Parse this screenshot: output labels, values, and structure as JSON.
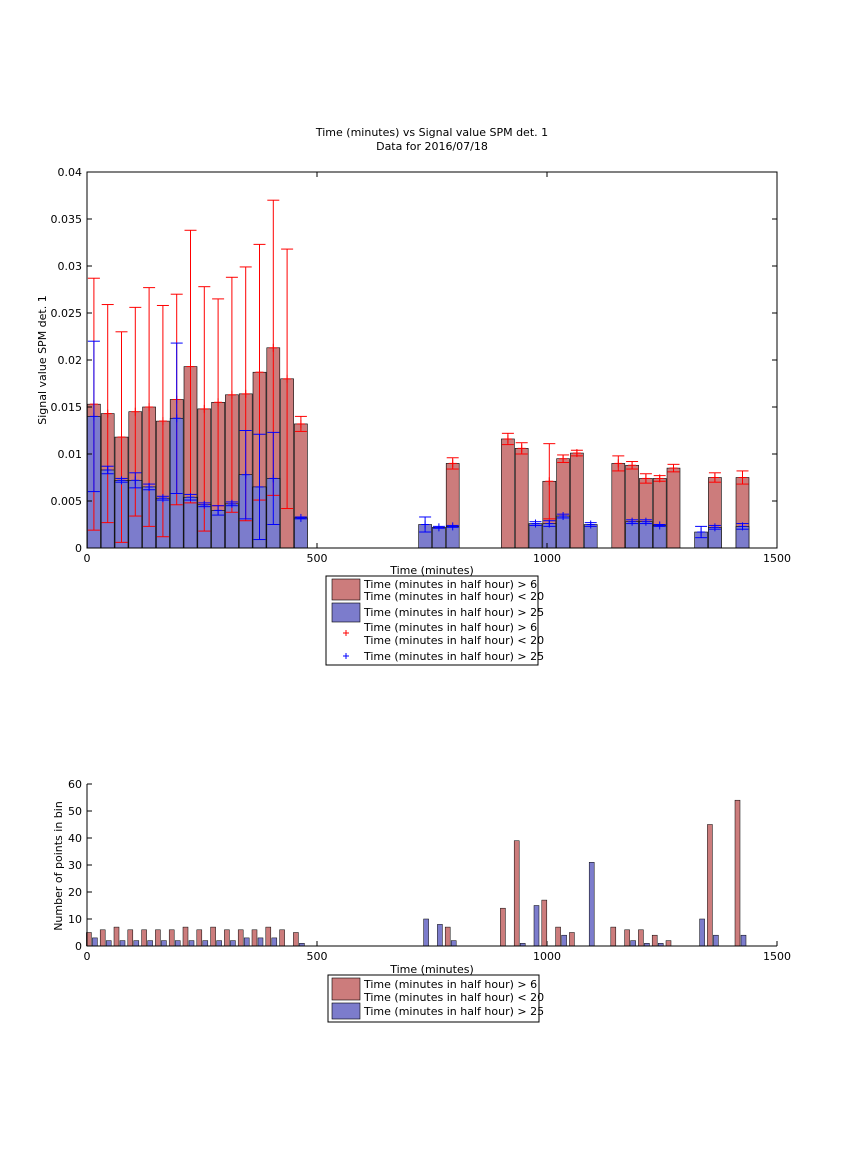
{
  "chart_data": [
    {
      "type": "bar",
      "title": "Time (minutes) vs Signal value SPM det. 1",
      "subtitle": "Data for 2016/07/18",
      "xlabel": "Time (minutes)",
      "ylabel": "Signal value SPM det. 1",
      "xlim": [
        0,
        1500
      ],
      "ylim": [
        0,
        0.04
      ],
      "xticks": [
        0,
        500,
        1000,
        1500
      ],
      "yticks": [
        0,
        0.005,
        0.01,
        0.015,
        0.02,
        0.025,
        0.03,
        0.035,
        0.04
      ],
      "xtick_labels": [
        "0",
        "500",
        "1000",
        "1500"
      ],
      "ytick_labels": [
        "0",
        "0.005",
        "0.01",
        "0.015",
        "0.02",
        "0.025",
        "0.03",
        "0.035",
        "0.04"
      ],
      "grid": false,
      "legend_position": "below plot",
      "legend": [
        {
          "label": "Time (minutes in half hour) > 6\nTime (minutes in half hour) < 20",
          "kind": "bar",
          "color": "#cc7c7c"
        },
        {
          "label": "Time (minutes in half hour) > 25",
          "kind": "bar",
          "color": "#7c7ccc"
        },
        {
          "label": "Time (minutes in half hour) > 6\nTime (minutes in half hour) < 20",
          "kind": "marker",
          "color": "#ff0000"
        },
        {
          "label": "Time (minutes in half hour) > 25",
          "kind": "marker",
          "color": "#0000ff"
        }
      ],
      "series": [
        {
          "name": "Time (minutes in half hour) > 6\nTime (minutes in half hour) < 20",
          "color": "#cc7c7c",
          "err_color": "#ff0000",
          "x": [
            15,
            45,
            75,
            105,
            135,
            165,
            195,
            225,
            255,
            285,
            315,
            345,
            375,
            405,
            435,
            465,
            795,
            915,
            945,
            1005,
            1035,
            1065,
            1155,
            1185,
            1215,
            1245,
            1275,
            1365,
            1425
          ],
          "y": [
            0.0153,
            0.0143,
            0.0118,
            0.0145,
            0.015,
            0.0135,
            0.0158,
            0.0193,
            0.0148,
            0.0155,
            0.0163,
            0.0164,
            0.0187,
            0.0213,
            0.018,
            0.0132,
            0.009,
            0.0116,
            0.0106,
            0.0071,
            0.0095,
            0.0101,
            0.009,
            0.0088,
            0.0074,
            0.0074,
            0.0085,
            0.0075,
            0.0075
          ],
          "err": [
            0.0134,
            0.0116,
            0.0112,
            0.0111,
            0.0127,
            0.0123,
            0.0112,
            0.0145,
            0.013,
            0.011,
            0.0125,
            0.0135,
            0.0136,
            0.0157,
            0.0138,
            0.0008,
            0.0006,
            0.0006,
            0.0006,
            0.004,
            0.0004,
            0.0003,
            0.0008,
            0.0004,
            0.0005,
            0.0003,
            0.0004,
            0.0005,
            0.0007
          ]
        },
        {
          "name": "Time (minutes in half hour) > 25",
          "color": "#7c7ccc",
          "err_color": "#0000ff",
          "x": [
            15,
            45,
            75,
            105,
            135,
            165,
            195,
            225,
            255,
            285,
            315,
            345,
            375,
            405,
            465,
            735,
            765,
            795,
            975,
            1005,
            1035,
            1095,
            1185,
            1215,
            1245,
            1335,
            1365,
            1425
          ],
          "y": [
            0.014,
            0.0083,
            0.0072,
            0.0072,
            0.0065,
            0.0053,
            0.0138,
            0.0054,
            0.0046,
            0.004,
            0.0047,
            0.0078,
            0.0065,
            0.0074,
            0.0032,
            0.0025,
            0.0022,
            0.0023,
            0.0026,
            0.0026,
            0.0034,
            0.0025,
            0.0028,
            0.0028,
            0.0024,
            0.0017,
            0.0022,
            0.0023
          ],
          "err": [
            0.008,
            0.0004,
            0.0002,
            0.0008,
            0.0003,
            0.0002,
            0.008,
            0.0003,
            0.0002,
            0.0005,
            0.0002,
            0.0047,
            0.0056,
            0.0049,
            0.0001,
            0.0008,
            0.0001,
            0.0001,
            0.0002,
            0.0003,
            0.0002,
            0.0002,
            0.0002,
            0.0002,
            0.0001,
            0.0006,
            0.0002,
            0.0003
          ]
        }
      ]
    },
    {
      "type": "bar",
      "xlabel": "Time (minutes)",
      "ylabel": "Number of points in bin",
      "xlim": [
        0,
        1500
      ],
      "ylim": [
        0,
        60
      ],
      "xticks": [
        0,
        500,
        1000,
        1500
      ],
      "yticks": [
        0,
        10,
        20,
        30,
        40,
        50,
        60
      ],
      "xtick_labels": [
        "0",
        "500",
        "1000",
        "1500"
      ],
      "ytick_labels": [
        "0",
        "10",
        "20",
        "30",
        "40",
        "50",
        "60"
      ],
      "grid": false,
      "legend_position": "below plot",
      "legend": [
        {
          "label": "Time (minutes in half hour) > 6\nTime (minutes in half hour) < 20",
          "kind": "bar",
          "color": "#cc7c7c"
        },
        {
          "label": "Time (minutes in half hour) > 25",
          "kind": "bar",
          "color": "#7c7ccc"
        }
      ],
      "series": [
        {
          "name": "Time (minutes in half hour) > 6\nTime (minutes in half hour) < 20",
          "color": "#cc7c7c",
          "x": [
            15,
            45,
            75,
            105,
            135,
            165,
            195,
            225,
            255,
            285,
            315,
            345,
            375,
            405,
            435,
            465,
            795,
            915,
            945,
            1005,
            1035,
            1065,
            1155,
            1185,
            1215,
            1245,
            1275,
            1365,
            1425
          ],
          "y": [
            5,
            6,
            7,
            6,
            6,
            6,
            6,
            7,
            6,
            7,
            6,
            6,
            6,
            7,
            6,
            5,
            7,
            14,
            39,
            17,
            7,
            5,
            7,
            6,
            6,
            4,
            2,
            45,
            54
          ]
        },
        {
          "name": "Time (minutes in half hour) > 25",
          "color": "#7c7ccc",
          "x": [
            15,
            45,
            75,
            105,
            135,
            165,
            195,
            225,
            255,
            285,
            315,
            345,
            375,
            405,
            465,
            735,
            765,
            795,
            945,
            975,
            1035,
            1095,
            1185,
            1215,
            1245,
            1335,
            1365,
            1425
          ],
          "y": [
            3,
            2,
            2,
            2,
            2,
            2,
            2,
            2,
            2,
            2,
            2,
            3,
            3,
            3,
            1,
            10,
            8,
            2,
            1,
            15,
            4,
            31,
            2,
            1,
            1,
            10,
            4,
            4
          ]
        }
      ]
    }
  ]
}
